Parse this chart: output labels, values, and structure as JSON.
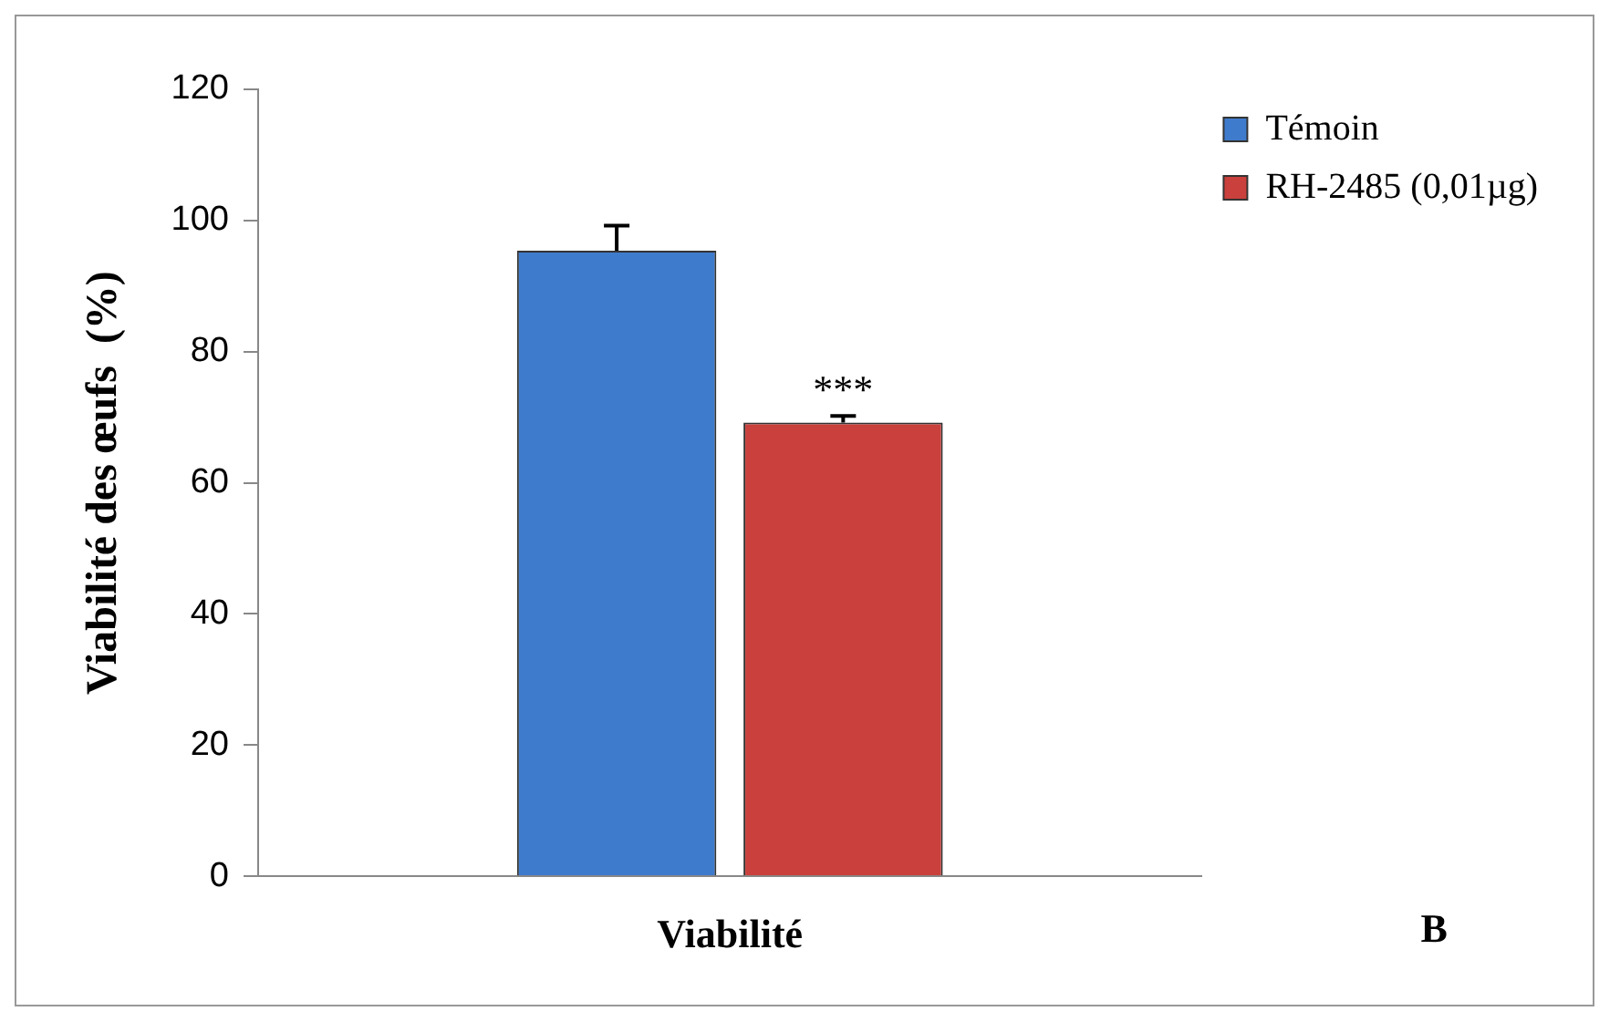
{
  "chart_data": {
    "type": "bar",
    "xlabel": "Viabilité",
    "ylabel": "Viabilité des œufs  (%)",
    "categories": [
      null
    ],
    "series": [
      {
        "name": "Témoin",
        "color": "#3f7bcc",
        "values": [
          95.4
        ],
        "errors": [
          3.8
        ]
      },
      {
        "name": "RH-2485 (0,01µg)",
        "color": "#c9403c",
        "values": [
          69.2
        ],
        "errors": [
          1.0
        ]
      }
    ],
    "ylim": [
      0,
      120
    ],
    "yticks": [
      0,
      20,
      40,
      60,
      80,
      100,
      120
    ],
    "grid": false,
    "legend": "top right",
    "annotations": [
      "***",
      "B"
    ]
  }
}
